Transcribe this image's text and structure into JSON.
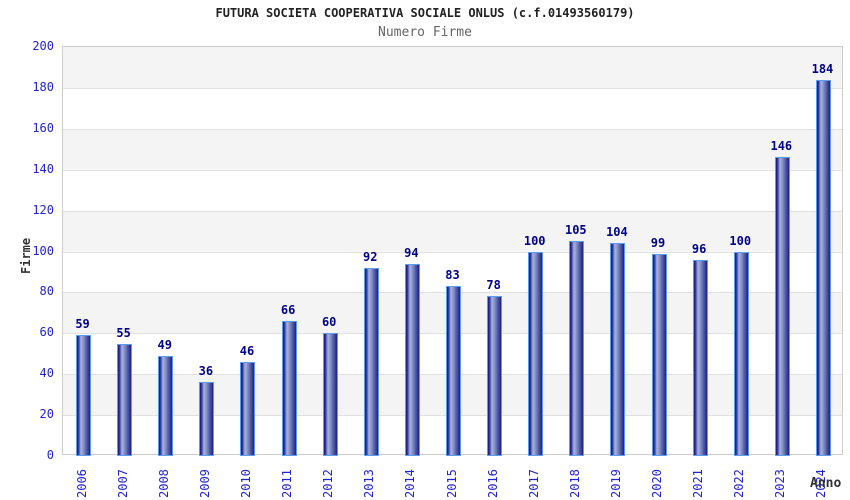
{
  "header": {
    "title": "FUTURA SOCIETA COOPERATIVA SOCIALE ONLUS (c.f.01493560179)",
    "subtitle": "Numero Firme"
  },
  "chart_data": {
    "type": "bar",
    "title": "FUTURA SOCIETA COOPERATIVA SOCIALE ONLUS (c.f.01493560179)",
    "subtitle": "Numero Firme",
    "categories": [
      "2006",
      "2007",
      "2008",
      "2009",
      "2010",
      "2011",
      "2012",
      "2013",
      "2014",
      "2015",
      "2016",
      "2017",
      "2018",
      "2019",
      "2020",
      "2021",
      "2022",
      "2023",
      "2024"
    ],
    "values": [
      59,
      55,
      49,
      36,
      46,
      66,
      60,
      92,
      94,
      83,
      78,
      100,
      105,
      104,
      99,
      96,
      100,
      146,
      184
    ],
    "xlabel": "Anno",
    "ylabel": "Firme",
    "ylim": [
      0,
      200
    ],
    "ytick_step": 20,
    "grid": true,
    "legend": false,
    "band_fill": "alternating horizontal bands every 20 units"
  },
  "colors": {
    "bar_border": "#5b9bf0",
    "bar_gradient": [
      "#17177a",
      "#2f3a9b",
      "#a7b2dd",
      "#8f9bd0",
      "#555fa8",
      "#1d2280"
    ],
    "value_label": "#00008b",
    "axis_tick": "#2323cc",
    "title": "#222222",
    "subtitle": "#666666",
    "axis_title": "#333333",
    "band": "#f4f4f4",
    "gridline": "#e0e0e0",
    "plot_border": "#cccccc"
  }
}
